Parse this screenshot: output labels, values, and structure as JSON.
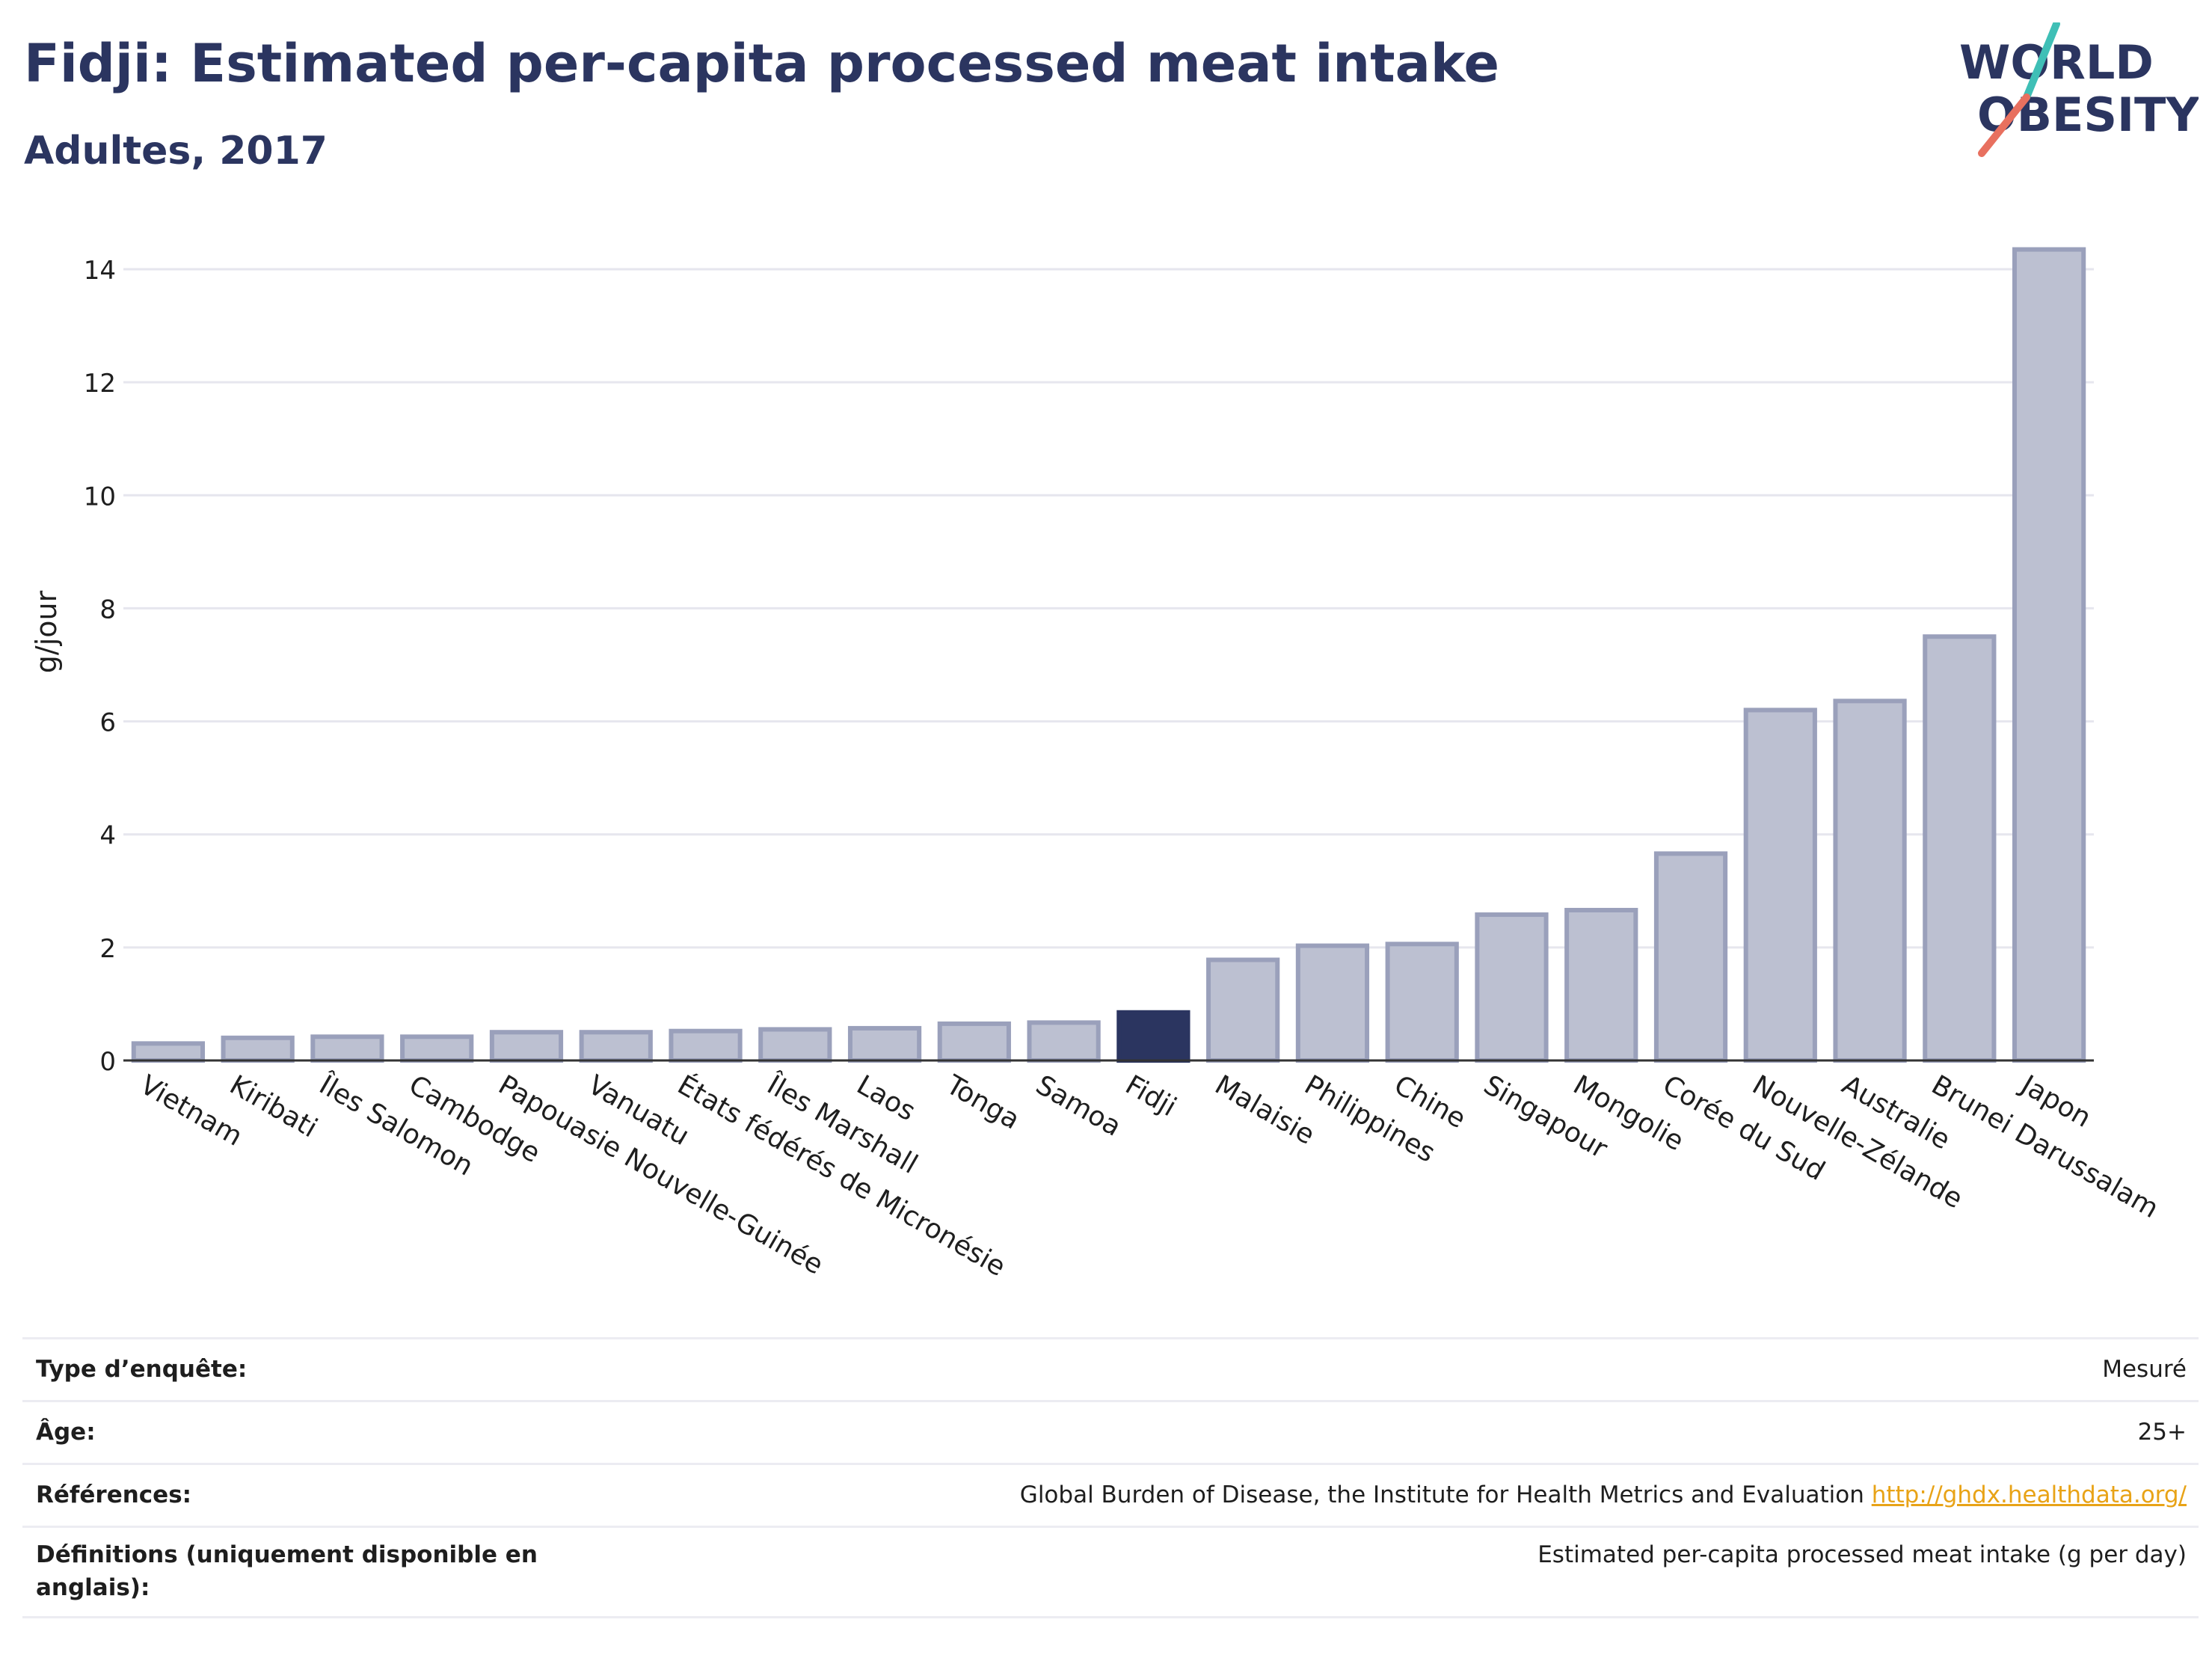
{
  "header": {
    "title": "Fidji: Estimated per-capita processed meat intake",
    "subtitle": "Adultes, 2017"
  },
  "logo": {
    "line1": "WORLD",
    "line2": "OBESITY"
  },
  "colors": {
    "bar": "#bcc0d1",
    "bar_border": "#9aa0bb",
    "highlight": "#2b3560",
    "title": "#2b3560",
    "link": "#e8a317"
  },
  "chart_data": {
    "type": "bar",
    "title": "Fidji: Estimated per-capita processed meat intake",
    "subtitle": "Adultes, 2017",
    "ylabel": "g/jour",
    "xlabel": "",
    "ylim": [
      0,
      15
    ],
    "yticks": [
      0,
      2,
      4,
      6,
      8,
      10,
      12,
      14
    ],
    "grid": true,
    "highlight": "Fidji",
    "categories": [
      "Vietnam",
      "Kiribati",
      "Îles Salomon",
      "Cambodge",
      "Papouasie Nouvelle-Guinée",
      "Vanuatu",
      "États fédérés de Micronésie",
      "Îles Marshall",
      "Laos",
      "Tonga",
      "Samoa",
      "Fidji",
      "Malaisie",
      "Philippines",
      "Chine",
      "Singapour",
      "Mongolie",
      "Corée du Sud",
      "Nouvelle-Zélande",
      "Australie",
      "Brunei Darussalam",
      "Japon"
    ],
    "values": [
      0.3,
      0.4,
      0.42,
      0.42,
      0.5,
      0.5,
      0.52,
      0.55,
      0.57,
      0.65,
      0.67,
      0.85,
      1.78,
      2.03,
      2.06,
      2.58,
      2.66,
      3.66,
      6.2,
      6.36,
      7.5,
      14.35
    ]
  },
  "info": {
    "rows": [
      {
        "label": "Type d’enquête:",
        "value": "Mesuré"
      },
      {
        "label": "Âge:",
        "value": "25+"
      },
      {
        "label": "Références:",
        "value": "Global Burden of Disease, the Institute for Health Metrics and Evaluation",
        "link": "http://ghdx.healthdata.org/"
      },
      {
        "label": "Définitions (uniquement disponible en anglais):",
        "value": "Estimated per-capita processed meat intake (g per day)"
      }
    ]
  }
}
